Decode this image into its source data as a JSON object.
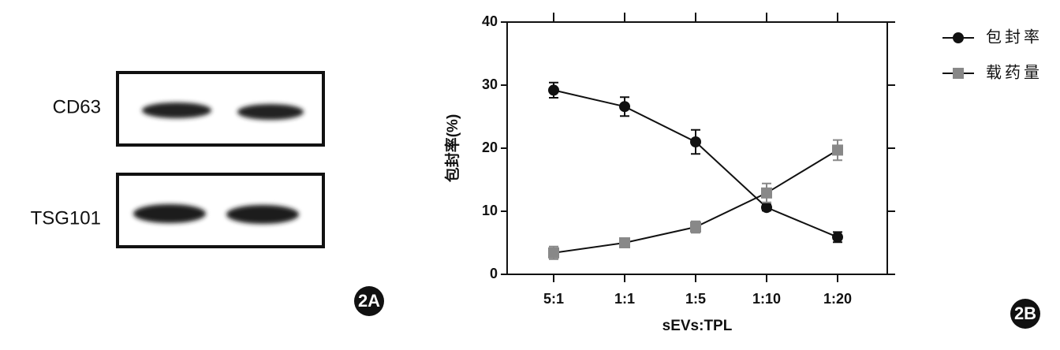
{
  "blot": {
    "rows": [
      "CD63",
      "TSG101"
    ],
    "panel_label": "2A"
  },
  "chart_data": {
    "type": "line",
    "panel_label": "2B",
    "y_label": "包封率(%)",
    "x_label": "sEVs:TPL",
    "categories": [
      "5:1",
      "1:1",
      "1:5",
      "1:10",
      "1:20"
    ],
    "series": [
      {
        "name": "包封率",
        "color": "#111111",
        "marker": "circle",
        "values": [
          29.2,
          26.6,
          21.0,
          10.6,
          5.9
        ],
        "errors": [
          1.2,
          1.5,
          1.9,
          0.5,
          0.8
        ]
      },
      {
        "name": "载药量",
        "color": "#888888",
        "marker": "square",
        "values": [
          3.4,
          5.0,
          7.5,
          12.9,
          19.7
        ],
        "errors": [
          1.0,
          0.4,
          0.9,
          1.5,
          1.6
        ]
      }
    ],
    "ylim": [
      0,
      40
    ],
    "yticks": [
      0,
      10,
      20,
      30,
      40
    ]
  }
}
